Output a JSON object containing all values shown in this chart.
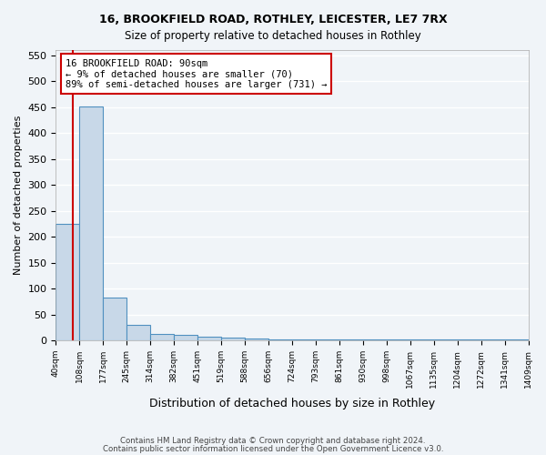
{
  "title1": "16, BROOKFIELD ROAD, ROTHLEY, LEICESTER, LE7 7RX",
  "title2": "Size of property relative to detached houses in Rothley",
  "xlabel": "Distribution of detached houses by size in Rothley",
  "ylabel": "Number of detached properties",
  "bin_labels": [
    "40sqm",
    "108sqm",
    "177sqm",
    "245sqm",
    "314sqm",
    "382sqm",
    "451sqm",
    "519sqm",
    "588sqm",
    "656sqm",
    "724sqm",
    "793sqm",
    "861sqm",
    "930sqm",
    "998sqm",
    "1067sqm",
    "1135sqm",
    "1204sqm",
    "1272sqm",
    "1341sqm",
    "1409sqm"
  ],
  "bar_heights": [
    225,
    452,
    82,
    30,
    12,
    10,
    7,
    5,
    3,
    2,
    2,
    1,
    1,
    1,
    1,
    1,
    1,
    1,
    1,
    1
  ],
  "bar_color": "#c8d8e8",
  "bar_edge_color": "#5090c0",
  "ylim": [
    0,
    560
  ],
  "yticks": [
    0,
    50,
    100,
    150,
    200,
    250,
    300,
    350,
    400,
    450,
    500,
    550
  ],
  "property_line_color": "#cc0000",
  "annotation_text": "16 BROOKFIELD ROAD: 90sqm\n← 9% of detached houses are smaller (70)\n89% of semi-detached houses are larger (731) →",
  "annotation_box_color": "#cc0000",
  "footer1": "Contains HM Land Registry data © Crown copyright and database right 2024.",
  "footer2": "Contains public sector information licensed under the Open Government Licence v3.0.",
  "bg_color": "#f0f4f8",
  "grid_color": "#ffffff"
}
